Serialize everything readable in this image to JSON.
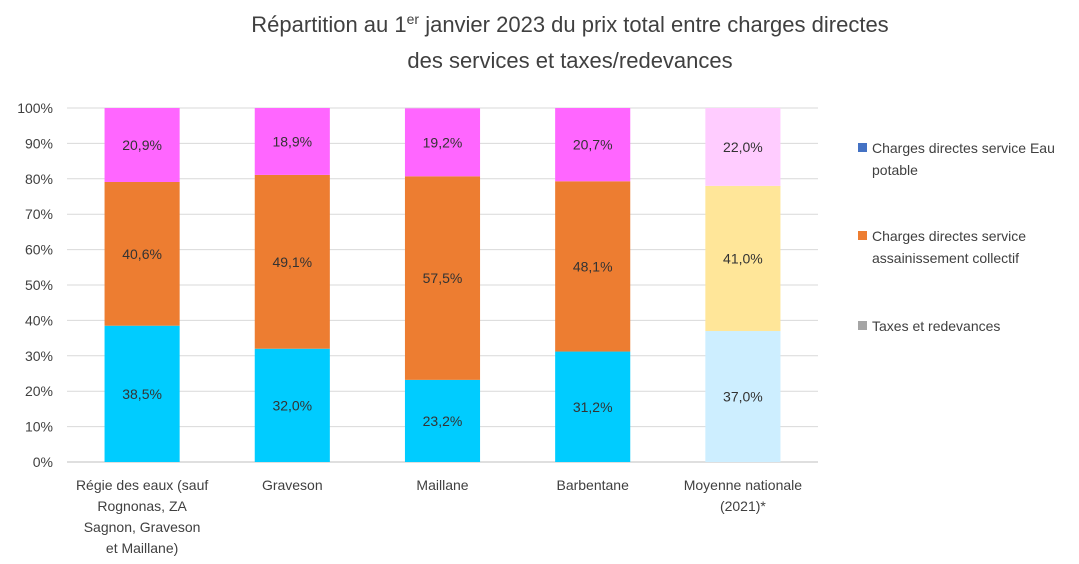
{
  "chart_data": {
    "type": "stacked_bar",
    "title": [
      "Répartition au 1",
      "er",
      " janvier 2023 du prix total entre charges directes",
      "des services et taxes/redevances"
    ],
    "categories": [
      [
        "Régie des eaux (sauf",
        "Rognonas, ZA",
        "Sagnon, Graveson",
        "et Maillane)"
      ],
      [
        "Graveson"
      ],
      [
        "Maillane"
      ],
      [
        "Barbentane"
      ],
      [
        "Moyenne nationale",
        "(2021)*"
      ]
    ],
    "series": [
      {
        "name": "Charges directes service Eau potable",
        "color": "#4472c4",
        "point_colors": [
          "#00ccff",
          "#00ccff",
          "#00ccff",
          "#00ccff",
          "#cdeeff"
        ],
        "values": [
          38.5,
          32.0,
          23.2,
          31.2,
          37.0
        ],
        "value_labels": [
          "38,5%",
          "32,0%",
          "23,2%",
          "31,2%",
          "37,0%"
        ]
      },
      {
        "name": "Charges directes service assainissement collectif",
        "color": "#ed7d31",
        "point_colors": [
          "#ed7d31",
          "#ed7d31",
          "#ed7d31",
          "#ed7d31",
          "#ffe699"
        ],
        "values": [
          40.6,
          49.1,
          57.5,
          48.1,
          41.0
        ],
        "value_labels": [
          "40,6%",
          "49,1%",
          "57,5%",
          "48,1%",
          "41,0%"
        ]
      },
      {
        "name": "Taxes et redevances",
        "color": "#a5a5a5",
        "point_colors": [
          "#ff66ff",
          "#ff66ff",
          "#ff66ff",
          "#ff66ff",
          "#ffccff"
        ],
        "values": [
          20.9,
          18.9,
          19.2,
          20.7,
          22.0
        ],
        "value_labels": [
          "20,9%",
          "18,9%",
          "19,2%",
          "20,7%",
          "22,0%"
        ]
      }
    ],
    "ylim": [
      0,
      100
    ],
    "yticks": [
      {
        "value": 0,
        "label": "0%"
      },
      {
        "value": 10,
        "label": "10%"
      },
      {
        "value": 20,
        "label": "20%"
      },
      {
        "value": 30,
        "label": "30%"
      },
      {
        "value": 40,
        "label": "40%"
      },
      {
        "value": 50,
        "label": "50%"
      },
      {
        "value": 60,
        "label": "60%"
      },
      {
        "value": 70,
        "label": "70%"
      },
      {
        "value": 80,
        "label": "80%"
      },
      {
        "value": 90,
        "label": "90%"
      },
      {
        "value": 100,
        "label": "100%"
      }
    ],
    "grid": true,
    "legend": "right"
  }
}
